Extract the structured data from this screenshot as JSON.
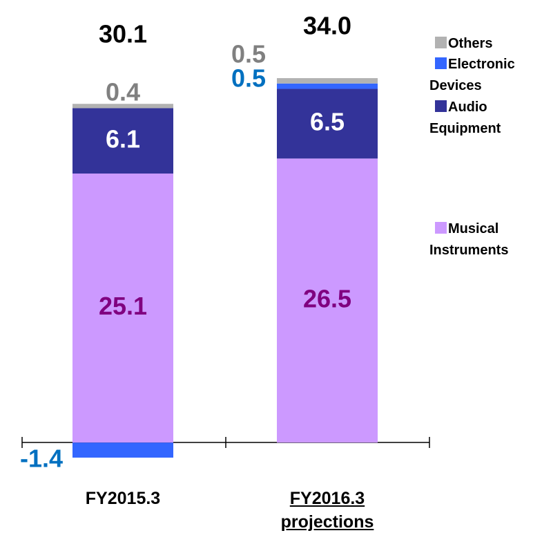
{
  "chart_data": {
    "type": "stacked_bar",
    "categories": [
      "FY2015.3",
      "FY2016.3 projections"
    ],
    "series": [
      {
        "name": "Musical Instruments",
        "color": "#cc99ff",
        "label_color": "#800080",
        "values": [
          25.1,
          26.5
        ]
      },
      {
        "name": "Audio Equipment",
        "color": "#333399",
        "label_color": "#ffffff",
        "values": [
          6.1,
          6.5
        ]
      },
      {
        "name": "Electronic Devices",
        "color": "#3366ff",
        "label_color": "#0070c0",
        "values": [
          -1.4,
          0.5
        ]
      },
      {
        "name": "Others",
        "color": "#b2b2b2",
        "label_color": "#808080",
        "values": [
          0.4,
          0.5
        ]
      }
    ],
    "totals": [
      30.1,
      34
    ],
    "totals_labels": [
      "30.1",
      "34.0"
    ],
    "ylim": [
      -2.5,
      38
    ]
  }
}
